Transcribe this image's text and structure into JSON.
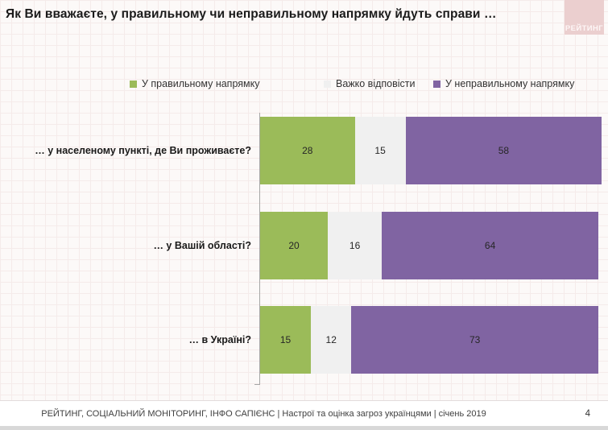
{
  "title": "Як Ви вважаєте, у правильному чи неправильному напрямку йдуть справи …",
  "logo": {
    "text": "РЕЙТИНГ",
    "bg_color": "#ebcfcf"
  },
  "legend": [
    {
      "label": "У правильному напрямку",
      "color": "#9bbb59"
    },
    {
      "label": "Важко відповісти",
      "color": "#f0f0f0"
    },
    {
      "label": "У неправильному напрямку",
      "color": "#8064a2"
    }
  ],
  "chart_data": {
    "type": "bar",
    "orientation": "horizontal",
    "stacked": true,
    "grid": false,
    "legend_position": "top",
    "xlim": [
      0,
      100
    ],
    "categories": [
      "… у населеному пункті, де Ви проживаєте?",
      "… у Вашій області?",
      "… в Україні?"
    ],
    "series": [
      {
        "name": "У правильному напрямку",
        "color": "#9bbb59",
        "values": [
          28,
          20,
          15
        ]
      },
      {
        "name": "Важко відповісти",
        "color": "#f0f0f0",
        "values": [
          15,
          16,
          12
        ]
      },
      {
        "name": "У неправильному напрямку",
        "color": "#8064a2",
        "values": [
          58,
          64,
          73
        ]
      }
    ]
  },
  "footer": {
    "source": "РЕЙТИНГ, СОЦІАЛЬНИЙ МОНІТОРИНГ, ІНФО САПІЄНС | Настрої та оцінка загроз українцями | січень 2019",
    "page_number": "4"
  }
}
